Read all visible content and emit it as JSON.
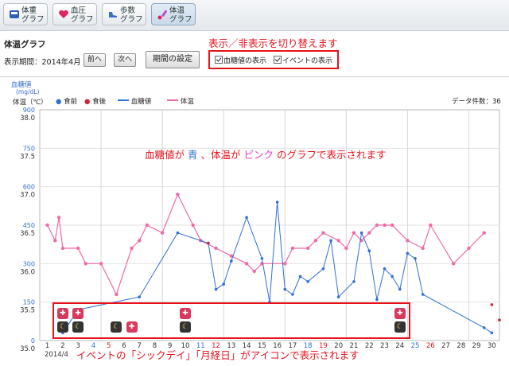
{
  "tabs": [
    {
      "label": "体重\nグラフ",
      "icon": "scale-icon",
      "active": false
    },
    {
      "label": "血圧\nグラフ",
      "icon": "heart-icon",
      "active": false
    },
    {
      "label": "歩数\nグラフ",
      "icon": "shoe-icon",
      "active": false
    },
    {
      "label": "体温\nグラフ",
      "icon": "thermometer-icon",
      "active": true
    }
  ],
  "page_title": "体温グラフ",
  "period_label": "表示期間：2014年4月",
  "prev_button": "前へ",
  "next_button": "次へ",
  "period_setting_button": "期間の設定",
  "toggle_note": "表示／非表示を切り替えます",
  "checkbox_glucose": "血糖値の表示",
  "checkbox_event": "イベントの表示",
  "graph_note": {
    "p1": "血糖値が",
    "p2": "青",
    "p3": "、体温が",
    "p4": "ピンク",
    "p5": "のグラフで表示されます"
  },
  "event_note": "イベントの「シックデイ」「月経日」がアイコンで表示されます",
  "axis": {
    "glucose_label": "血糖値",
    "glucose_unit": "(mg/dL)",
    "temp_label": "体温（℃）",
    "glucose_ticks": [
      "900",
      "750",
      "600",
      "450",
      "300",
      "150",
      "0"
    ],
    "temp_ticks": [
      "38.0",
      "37.5",
      "37.0",
      "36.5",
      "36.0",
      "35.5",
      "35.0"
    ],
    "days": [
      "1",
      "2",
      "3",
      "4",
      "5",
      "6",
      "7",
      "8",
      "9",
      "10",
      "11",
      "12",
      "13",
      "14",
      "15",
      "16",
      "17",
      "18",
      "19",
      "20",
      "21",
      "22",
      "23",
      "24",
      "25",
      "26",
      "27",
      "28",
      "29",
      "30"
    ],
    "month_label": "2014/4"
  },
  "legend": {
    "before_meal": "食前",
    "after_meal": "食後",
    "glucose": "血糖値",
    "temperature": "体温",
    "data_count": "データ件数：36"
  },
  "colors": {
    "glucose": "#2f6fd6",
    "temperature": "#ef6aa7",
    "after_meal": "#d4213a",
    "accent": "#e8121c",
    "saturday": "#2f6fd6",
    "sunday": "#e8121c"
  },
  "chart_data": {
    "type": "line",
    "x_unit": "day of April 2014",
    "glucose_range": [
      0,
      900
    ],
    "temp_range": [
      35.0,
      38.0
    ],
    "series": [
      {
        "name": "体温",
        "axis": "right",
        "points": [
          [
            1,
            36.5
          ],
          [
            1.5,
            36.3
          ],
          [
            1.75,
            36.6
          ],
          [
            2,
            36.2
          ],
          [
            3,
            36.2
          ],
          [
            3.5,
            36.0
          ],
          [
            4.5,
            36.0
          ],
          [
            5.5,
            35.6
          ],
          [
            6.5,
            36.2
          ],
          [
            7,
            36.3
          ],
          [
            7.5,
            36.5
          ],
          [
            8.5,
            36.4
          ],
          [
            9.5,
            36.9
          ],
          [
            10.5,
            36.5
          ],
          [
            11,
            36.3
          ],
          [
            12,
            36.2
          ],
          [
            13,
            36.1
          ],
          [
            14,
            36.0
          ],
          [
            14.5,
            35.9
          ],
          [
            15,
            36.0
          ],
          [
            16.5,
            36.0
          ],
          [
            17,
            36.2
          ],
          [
            18,
            36.2
          ],
          [
            18.5,
            36.3
          ],
          [
            19,
            36.4
          ],
          [
            20,
            36.3
          ],
          [
            20.5,
            36.2
          ],
          [
            21,
            36.4
          ],
          [
            21.5,
            36.3
          ],
          [
            22,
            36.4
          ],
          [
            22.5,
            36.5
          ],
          [
            23,
            36.5
          ],
          [
            23.5,
            36.5
          ],
          [
            24.5,
            36.3
          ],
          [
            25.5,
            36.2
          ],
          [
            26,
            36.5
          ],
          [
            27.5,
            36.0
          ],
          [
            28.5,
            36.2
          ],
          [
            29.5,
            36.4
          ]
        ]
      },
      {
        "name": "血糖値",
        "axis": "left",
        "points": [
          [
            2,
            30
          ],
          [
            3,
            120
          ],
          [
            7,
            170
          ],
          [
            9.5,
            420
          ],
          [
            11.5,
            380
          ],
          [
            12,
            200
          ],
          [
            12.5,
            220
          ],
          [
            13,
            310
          ],
          [
            14,
            480
          ],
          [
            15,
            320
          ],
          [
            15.5,
            150
          ],
          [
            16,
            540
          ],
          [
            16.5,
            200
          ],
          [
            17,
            180
          ],
          [
            17.5,
            250
          ],
          [
            18,
            230
          ],
          [
            19,
            280
          ],
          [
            19.5,
            390
          ],
          [
            20,
            170
          ],
          [
            21,
            230
          ],
          [
            21.5,
            420
          ],
          [
            22,
            350
          ],
          [
            22.5,
            160
          ],
          [
            23,
            280
          ],
          [
            23.5,
            250
          ],
          [
            24,
            200
          ],
          [
            24.5,
            340
          ],
          [
            25,
            320
          ],
          [
            25.5,
            180
          ],
          [
            29.5,
            50
          ],
          [
            30,
            30
          ]
        ]
      },
      {
        "name": "食後",
        "axis": "left",
        "points": [
          [
            11.5,
            380
          ],
          [
            30,
            140
          ],
          [
            30.5,
            80
          ]
        ]
      }
    ]
  },
  "events": [
    {
      "day": 2,
      "row": 1,
      "type": "sick",
      "icon": "sick-day-icon"
    },
    {
      "day": 3,
      "row": 1,
      "type": "sick",
      "icon": "sick-day-icon"
    },
    {
      "day": 10,
      "row": 1,
      "type": "sick",
      "icon": "sick-day-icon"
    },
    {
      "day": 24,
      "row": 1,
      "type": "sick",
      "icon": "sick-day-icon"
    },
    {
      "day": 2,
      "row": 2,
      "type": "moon",
      "icon": "moon-icon"
    },
    {
      "day": 3,
      "row": 2,
      "type": "moon",
      "icon": "moon-icon"
    },
    {
      "day": 5.5,
      "row": 2,
      "type": "moon",
      "icon": "moon-icon"
    },
    {
      "day": 6.5,
      "row": 2,
      "type": "sick",
      "icon": "sick-day-icon"
    },
    {
      "day": 10,
      "row": 2,
      "type": "moon",
      "icon": "moon-icon"
    },
    {
      "day": 24,
      "row": 2,
      "type": "moon",
      "icon": "moon-icon"
    }
  ]
}
